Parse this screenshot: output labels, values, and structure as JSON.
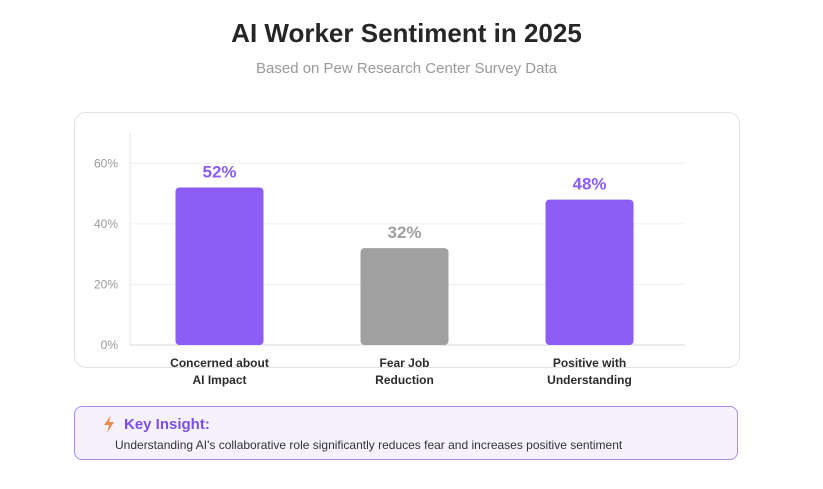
{
  "header": {
    "title": "AI Worker Sentiment in 2025",
    "subtitle": "Based on Pew Research Center Survey Data"
  },
  "chart_data": {
    "type": "bar",
    "categories": [
      [
        "Concerned about",
        "AI Impact"
      ],
      [
        "Fear Job",
        "Reduction"
      ],
      [
        "Positive with",
        "Understanding"
      ]
    ],
    "values": [
      52,
      32,
      48
    ],
    "data_labels": [
      "52%",
      "32%",
      "48%"
    ],
    "bar_colors": [
      "#8b5cf6",
      "#a0a0a0",
      "#8b5cf6"
    ],
    "y_ticks": [
      0,
      20,
      40,
      60
    ],
    "y_tick_labels": [
      "0%",
      "20%",
      "40%",
      "60%"
    ],
    "ylim": [
      0,
      70
    ],
    "grid": true
  },
  "insight": {
    "icon": "lightning-icon",
    "title": "Key Insight:",
    "text": "Understanding AI's collaborative role significantly reduces fear and increases positive sentiment"
  }
}
